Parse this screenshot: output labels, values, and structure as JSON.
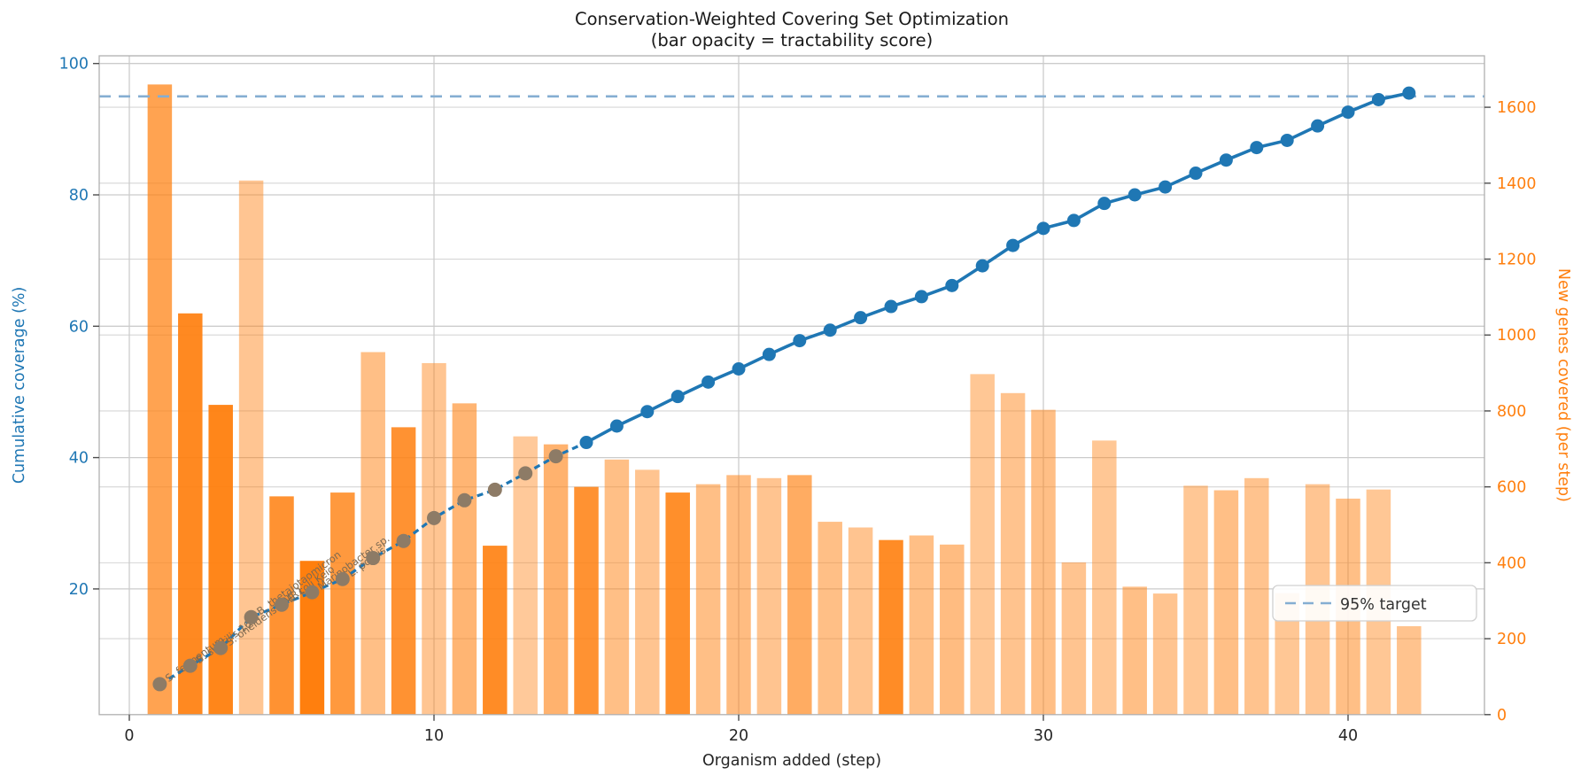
{
  "title": {
    "line1": "Conservation-Weighted Covering Set Optimization",
    "line2": "(bar opacity = tractability score)"
  },
  "axes": {
    "x": {
      "label": "Organism added (step)",
      "ticks": [
        0,
        10,
        20,
        30,
        40
      ]
    },
    "y_left": {
      "label": "Cumulative coverage (%)",
      "ticks": [
        20,
        40,
        60,
        80,
        100
      ],
      "color": "#1f77b4"
    },
    "y_right": {
      "label": "New genes covered (per step)",
      "ticks": [
        0,
        200,
        400,
        600,
        800,
        1000,
        1200,
        1400,
        1600
      ],
      "color": "#ff7f0e"
    }
  },
  "legend": {
    "label": "95% target"
  },
  "colors": {
    "bar": "#ff7f0e",
    "line": "#1f77b4",
    "target_dash": "#85aed2",
    "grid": "#cccccc",
    "spine": "#b0b0b0",
    "gray_marker": "#8d7b66",
    "point_label": "#7d6a52",
    "tick_text": "#262626"
  },
  "target_line": {
    "value_pct": 95,
    "style": "dashed"
  },
  "chart_data": {
    "type": "bar+line",
    "x_steps": [
      1,
      2,
      3,
      4,
      5,
      6,
      7,
      8,
      9,
      10,
      11,
      12,
      13,
      14,
      15,
      16,
      17,
      18,
      19,
      20,
      21,
      22,
      23,
      24,
      25,
      26,
      27,
      28,
      29,
      30,
      31,
      32,
      33,
      34,
      35,
      36,
      37,
      38,
      39,
      40,
      41,
      42
    ],
    "series": [
      {
        "name": "New genes covered (per step)",
        "type": "bar",
        "axis": "right",
        "values": [
          1660,
          1057,
          816,
          1407,
          575,
          405,
          585,
          955,
          757,
          926,
          820,
          445,
          733,
          712,
          600,
          672,
          645,
          585,
          607,
          631,
          623,
          631,
          508,
          493,
          460,
          472,
          448,
          897,
          847,
          803,
          401,
          722,
          337,
          319,
          603,
          591,
          623,
          320,
          607,
          569,
          593,
          233
        ],
        "opacities": [
          0.72,
          0.92,
          0.95,
          0.45,
          0.85,
          1.0,
          0.8,
          0.5,
          0.85,
          0.45,
          0.58,
          0.9,
          0.42,
          0.6,
          0.85,
          0.5,
          0.46,
          0.88,
          0.5,
          0.52,
          0.46,
          0.65,
          0.5,
          0.46,
          0.9,
          0.5,
          0.52,
          0.44,
          0.47,
          0.5,
          0.46,
          0.44,
          0.5,
          0.46,
          0.44,
          0.5,
          0.47,
          0.44,
          0.45,
          0.5,
          0.44,
          0.47
        ]
      },
      {
        "name": "Cumulative coverage (%)",
        "type": "line",
        "axis": "left",
        "values": [
          5.5,
          8.3,
          11.0,
          15.7,
          17.6,
          19.5,
          21.5,
          24.7,
          27.3,
          30.8,
          33.5,
          35.1,
          37.6,
          40.2,
          42.3,
          44.8,
          47.0,
          49.3,
          51.5,
          53.5,
          55.7,
          57.8,
          59.4,
          61.3,
          63.0,
          64.5,
          66.2,
          69.2,
          72.3,
          74.9,
          76.1,
          78.7,
          80.0,
          81.2,
          83.3,
          85.3,
          87.2,
          88.3,
          90.5,
          92.6,
          94.5,
          95.5
        ],
        "gray_marker_last_step": 14,
        "dashed_until_step": 15
      }
    ],
    "point_labels": [
      {
        "step": 1,
        "text": "S. fermentum"
      },
      {
        "step": 2,
        "text": "B. subtilis 168"
      },
      {
        "step": 3,
        "text": "S. oneidensis MR1"
      },
      {
        "step": 4,
        "text": "B. thetaiotaomicron"
      },
      {
        "step": 5,
        "text": "E. coli Keio"
      },
      {
        "step": 6,
        "text": "Marinobacter sp."
      },
      {
        "step": 7,
        "text": "L. pontis"
      }
    ],
    "ylim_left": [
      1.1,
      101.2
    ],
    "ylim_right": [
      0,
      1750
    ],
    "grid": true,
    "legend_position": "lower right"
  }
}
